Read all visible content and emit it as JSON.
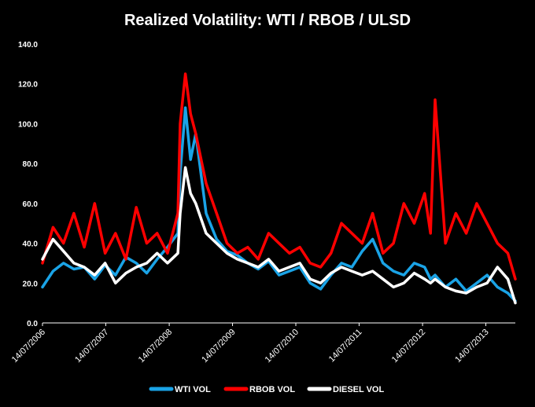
{
  "chart_data": {
    "type": "line",
    "title": "Realized Volatility: WTI / RBOB / ULSD",
    "xlabel": "",
    "ylabel": "",
    "ylim": [
      0,
      140
    ],
    "ytick_labels": [
      "0.0",
      "20.0",
      "40.0",
      "60.0",
      "80.0",
      "100.0",
      "120.0",
      "140.0"
    ],
    "xtick_labels": [
      "14/07/2006",
      "14/07/2007",
      "14/07/2008",
      "14/07/2009",
      "14/07/2010",
      "14/07/2011",
      "14/07/2012",
      "14/07/2013"
    ],
    "xlim": [
      "14/07/2006",
      "31/12/2013"
    ],
    "grid": false,
    "legend_position": "bottom",
    "x": [
      "14/07/2006",
      "13/09/2006",
      "12/11/2006",
      "11/01/2007",
      "12/03/2007",
      "11/05/2007",
      "10/07/2007",
      "08/09/2007",
      "07/11/2007",
      "06/01/2008",
      "06/03/2008",
      "05/05/2008",
      "04/07/2008",
      "02/09/2008",
      "15/09/2008",
      "15/10/2008",
      "14/11/2008",
      "14/12/2008",
      "12/02/2009",
      "13/04/2009",
      "12/06/2009",
      "11/08/2009",
      "10/10/2009",
      "09/12/2009",
      "07/02/2010",
      "08/04/2010",
      "07/06/2010",
      "06/08/2010",
      "05/10/2010",
      "04/12/2010",
      "02/02/2011",
      "03/04/2011",
      "02/06/2011",
      "01/08/2011",
      "30/09/2011",
      "29/11/2011",
      "28/01/2012",
      "28/03/2012",
      "27/05/2012",
      "26/07/2012",
      "29/08/2012",
      "24/09/2012",
      "23/11/2012",
      "22/01/2013",
      "23/03/2013",
      "22/05/2013",
      "21/07/2013",
      "19/09/2013",
      "18/11/2013",
      "31/12/2013"
    ],
    "series": [
      {
        "name": "WTI VOL",
        "color": "#1aa3e6",
        "values": [
          18,
          26,
          30,
          27,
          28,
          22,
          29,
          24,
          33,
          30,
          25,
          32,
          38,
          45,
          75,
          108,
          82,
          95,
          55,
          42,
          36,
          34,
          30,
          27,
          31,
          24,
          26,
          28,
          20,
          17,
          24,
          30,
          28,
          36,
          42,
          30,
          26,
          24,
          30,
          28,
          22,
          24,
          18,
          22,
          16,
          20,
          24,
          18,
          15,
          11
        ]
      },
      {
        "name": "RBOB VOL",
        "color": "#ff0000",
        "values": [
          30,
          48,
          40,
          55,
          38,
          60,
          35,
          45,
          32,
          58,
          40,
          45,
          35,
          55,
          100,
          125,
          105,
          95,
          70,
          55,
          40,
          35,
          38,
          32,
          45,
          40,
          35,
          38,
          30,
          28,
          35,
          50,
          45,
          40,
          55,
          35,
          40,
          60,
          50,
          65,
          45,
          112,
          40,
          55,
          45,
          60,
          50,
          40,
          35,
          22
        ]
      },
      {
        "name": "DIESEL VOL",
        "color": "#ffffff",
        "values": [
          32,
          42,
          36,
          30,
          28,
          24,
          30,
          20,
          25,
          28,
          30,
          35,
          30,
          35,
          55,
          78,
          65,
          60,
          45,
          40,
          35,
          32,
          30,
          28,
          32,
          26,
          28,
          30,
          22,
          20,
          25,
          28,
          26,
          24,
          26,
          22,
          18,
          20,
          25,
          22,
          20,
          22,
          18,
          16,
          15,
          18,
          20,
          28,
          22,
          10
        ]
      }
    ]
  }
}
